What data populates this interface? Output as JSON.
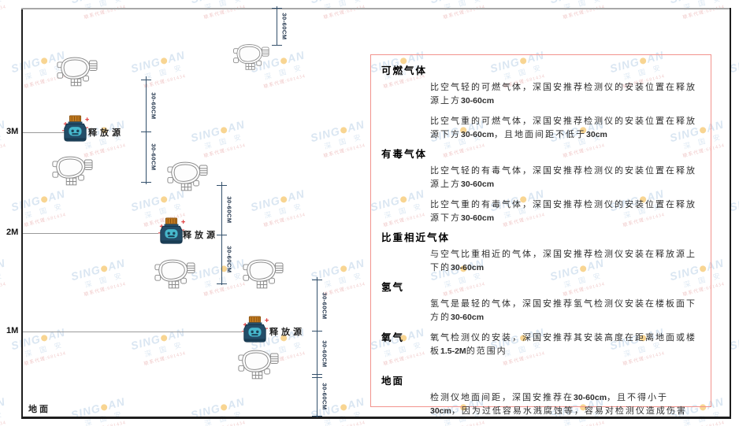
{
  "diagram": {
    "levels": [
      "3M",
      "2M",
      "1M"
    ],
    "ground_label": "地面",
    "release_source_label": "释放源",
    "dim_label": "30-60CM"
  },
  "panel": {
    "border_color": "#f2938d",
    "sections": [
      {
        "heading": "可燃气体",
        "inline": false,
        "paragraphs": [
          "比空气轻的可燃气体，深国安推荐检测仪的安装位置在释放源上方30-60cm",
          "比空气重的可燃气体，深国安推荐检测仪的安装位置在释放源下方30-60cm，且地面间距不低于30cm"
        ]
      },
      {
        "heading": "有毒气体",
        "inline": false,
        "paragraphs": [
          "比空气轻的有毒气体，深国安推荐检测仪的安装位置在释放源上方30-60cm",
          "比空气重的有毒气体，深国安推荐检测仪的安装位置在释放源下方30-60cm"
        ]
      },
      {
        "heading": "比重相近气体",
        "inline": false,
        "paragraphs": [
          "与空气比重相近的气体，深国安推荐检测仪安装在释放源上下的30-60cm"
        ]
      },
      {
        "heading": "氢气",
        "inline": false,
        "paragraphs": [
          "氢气是最轻的气体，深国安推荐氢气检测仪安装在楼板面下方的30-60cm"
        ]
      },
      {
        "heading": "氧气",
        "inline": true,
        "paragraphs": [
          "氧气检测仪的安装，深国安推荐其安装高度在距离地面或楼板1.5-2M的范围内"
        ]
      },
      {
        "heading": "地面",
        "inline": false,
        "gap_top": true,
        "paragraphs": [
          "检测仪地面间距，深国安推荐在30-60cm，且不得小于30cm，因为过低容易水溅腐蚀等，容易对检测仪造成伤害"
        ]
      }
    ]
  },
  "watermark": {
    "brand_left": "SING",
    "brand_right": "AN",
    "cn": "深 国 安",
    "red_text": "联系代理:681434",
    "brand_color": "#bcd3e8",
    "dot_color": "#f3b33a",
    "red_color": "#e49a9a"
  }
}
